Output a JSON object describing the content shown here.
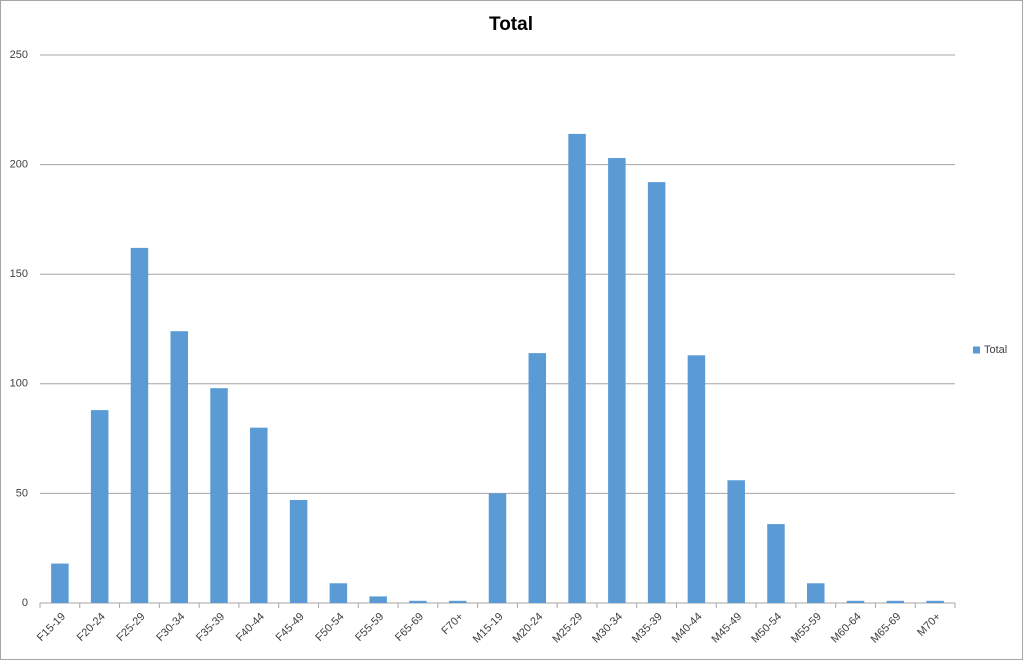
{
  "chart_data": {
    "type": "bar",
    "title": "Total",
    "categories": [
      "F15-19",
      "F20-24",
      "F25-29",
      "F30-34",
      "F35-39",
      "F40-44",
      "F45-49",
      "F50-54",
      "F55-59",
      "F65-69",
      "F70+",
      "M15-19",
      "M20-24",
      "M25-29",
      "M30-34",
      "M35-39",
      "M40-44",
      "M45-49",
      "M50-54",
      "M55-59",
      "M60-64",
      "M65-69",
      "M70+"
    ],
    "series": [
      {
        "name": "Total",
        "color": "#5b9bd5",
        "values": [
          18,
          88,
          162,
          124,
          98,
          80,
          47,
          9,
          3,
          1,
          1,
          50,
          114,
          214,
          203,
          192,
          113,
          56,
          36,
          9,
          1,
          1,
          1
        ]
      }
    ],
    "ylim": [
      0,
      250
    ],
    "yticks": [
      0,
      50,
      100,
      150,
      200,
      250
    ],
    "grid": true,
    "legend": "right"
  }
}
